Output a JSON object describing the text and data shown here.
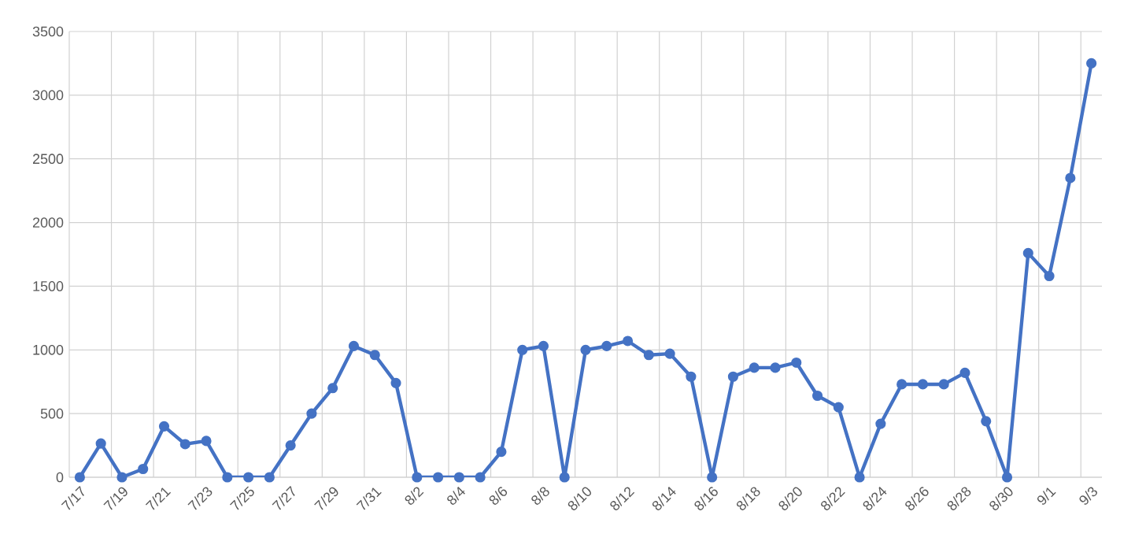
{
  "chart_data": {
    "type": "line",
    "categories": [
      "7/17",
      null,
      "7/19",
      null,
      "7/21",
      null,
      "7/23",
      null,
      "7/25",
      null,
      "7/27",
      null,
      "7/29",
      null,
      "7/31",
      null,
      "8/2",
      null,
      "8/4",
      null,
      "8/6",
      null,
      "8/8",
      null,
      "8/10",
      null,
      "8/12",
      null,
      "8/14",
      null,
      "8/16",
      null,
      "8/18",
      null,
      "8/20",
      null,
      "8/22",
      null,
      "8/24",
      null,
      "8/26",
      null,
      "8/28",
      null,
      "8/30",
      null,
      "9/1",
      null,
      "9/3"
    ],
    "series": [
      {
        "color": "#4472c4",
        "values": [
          0,
          265,
          0,
          65,
          400,
          260,
          285,
          0,
          0,
          0,
          250,
          500,
          700,
          1030,
          960,
          740,
          0,
          0,
          0,
          0,
          200,
          1000,
          1030,
          0,
          1000,
          1030,
          1070,
          960,
          970,
          790,
          0,
          790,
          860,
          860,
          900,
          640,
          550,
          0,
          420,
          730,
          730,
          730,
          820,
          440,
          0,
          1760,
          1580,
          2350,
          3250
        ]
      }
    ],
    "ylim": [
      0,
      3500
    ],
    "yticks": [
      0,
      500,
      1000,
      1500,
      2000,
      2500,
      3000,
      3500
    ],
    "grid": true,
    "marker": "circle",
    "line_style": "solid"
  }
}
